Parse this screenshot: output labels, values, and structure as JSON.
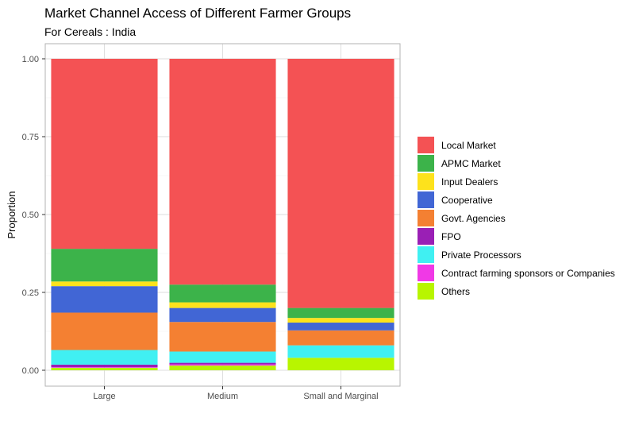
{
  "chart_data": {
    "type": "bar",
    "stacked": true,
    "title": "Market Channel Access of Different Farmer Groups",
    "subtitle": "For Cereals : India",
    "xlabel": "",
    "ylabel": "Proportion",
    "ylim": [
      0,
      1
    ],
    "yticks": [
      "0.00",
      "0.25",
      "0.50",
      "0.75",
      "1.00"
    ],
    "grid": true,
    "legend_position": "right",
    "categories": [
      "Large",
      "Medium",
      "Small and Marginal"
    ],
    "series": [
      {
        "name": "Others",
        "color": "#b8f500",
        "values": [
          0.008,
          0.015,
          0.04
        ]
      },
      {
        "name": "Contract farming sponsors or Companies",
        "color": "#f039e6",
        "values": [
          0.002,
          0.004,
          0.0
        ]
      },
      {
        "name": "FPO",
        "color": "#9a1fb5",
        "values": [
          0.008,
          0.005,
          0.0
        ]
      },
      {
        "name": "Private Processors",
        "color": "#40f0f2",
        "values": [
          0.047,
          0.036,
          0.04
        ]
      },
      {
        "name": "Govt. Agencies",
        "color": "#f48032",
        "values": [
          0.12,
          0.095,
          0.048
        ]
      },
      {
        "name": "Cooperative",
        "color": "#4166d5",
        "values": [
          0.085,
          0.045,
          0.025
        ]
      },
      {
        "name": "Input Dealers",
        "color": "#fde21c",
        "values": [
          0.015,
          0.018,
          0.015
        ]
      },
      {
        "name": "APMC Market",
        "color": "#3cb34a",
        "values": [
          0.105,
          0.057,
          0.032
        ]
      },
      {
        "name": "Local Market",
        "color": "#f45254",
        "values": [
          0.61,
          0.725,
          0.8
        ]
      }
    ],
    "legend_order": [
      "Local Market",
      "APMC Market",
      "Input Dealers",
      "Cooperative",
      "Govt. Agencies",
      "FPO",
      "Private Processors",
      "Contract farming sponsors or Companies",
      "Others"
    ]
  }
}
